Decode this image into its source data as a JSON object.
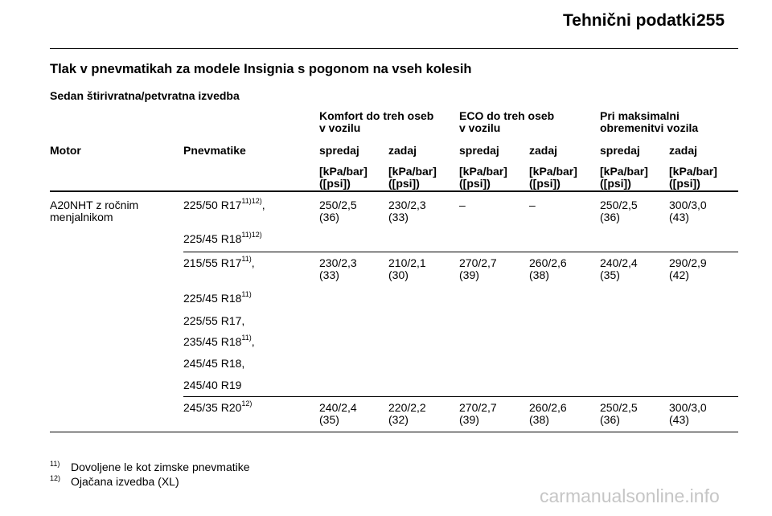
{
  "header": {
    "title": "Tehnični podatki",
    "page_number": "255"
  },
  "section_title": "Tlak v pnevmatikah za modele Insignia s pogonom na vseh kolesih",
  "subtitle": "Sedan štirivratna/petvratna izvedba",
  "groups": [
    {
      "line1": "Komfort do treh oseb",
      "line2": "v vozilu"
    },
    {
      "line1": "ECO do treh oseb",
      "line2": "v vozilu"
    },
    {
      "line1": "Pri maksimalni",
      "line2": "obremenitvi vozila"
    }
  ],
  "columns": {
    "motor": "Motor",
    "tyres": "Pnevmatike",
    "front": "spredaj",
    "rear": "zadaj"
  },
  "unit": {
    "line1": "[kPa/bar]",
    "line2": "([psi])"
  },
  "motor": {
    "line1": "A20NHT z ročnim",
    "line2": "menjalnikom"
  },
  "rows": [
    {
      "tyres": [
        {
          "text": "225/50 R17",
          "sup": "11)12)",
          "suffix": ","
        },
        {
          "text": "225/45 R18",
          "sup": "11)12)",
          "suffix": ""
        }
      ],
      "values": [
        [
          "250/2,5",
          "(36)"
        ],
        [
          "230/2,3",
          "(33)"
        ],
        [
          "–",
          ""
        ],
        [
          "–",
          ""
        ],
        [
          "250/2,5",
          "(36)"
        ],
        [
          "300/3,0",
          "(43)"
        ]
      ]
    },
    {
      "tyres": [
        {
          "text": "215/55 R17",
          "sup": "11)",
          "suffix": ","
        },
        {
          "text": "225/45 R18",
          "sup": "11)",
          "suffix": ""
        },
        {
          "text": "225/55 R17,",
          "sup": "",
          "suffix": ""
        },
        {
          "text": "235/45 R18",
          "sup": "11)",
          "suffix": ","
        },
        {
          "text": "245/45 R18,",
          "sup": "",
          "suffix": ""
        },
        {
          "text": "245/40 R19",
          "sup": "",
          "suffix": ""
        }
      ],
      "values": [
        [
          "230/2,3",
          "(33)"
        ],
        [
          "210/2,1",
          "(30)"
        ],
        [
          "270/2,7",
          "(39)"
        ],
        [
          "260/2,6",
          "(38)"
        ],
        [
          "240/2,4",
          "(35)"
        ],
        [
          "290/2,9",
          "(42)"
        ]
      ]
    },
    {
      "tyres": [
        {
          "text": "245/35 R20",
          "sup": "12)",
          "suffix": ""
        }
      ],
      "values": [
        [
          "240/2,4",
          "(35)"
        ],
        [
          "220/2,2",
          "(32)"
        ],
        [
          "270/2,7",
          "(39)"
        ],
        [
          "260/2,6",
          "(38)"
        ],
        [
          "250/2,5",
          "(36)"
        ],
        [
          "300/3,0",
          "(43)"
        ]
      ]
    }
  ],
  "footnotes": [
    {
      "num": "11)",
      "text": "Dovoljene le kot zimske pnevmatike"
    },
    {
      "num": "12)",
      "text": "Ojačana izvedba (XL)"
    }
  ],
  "watermark": "carmanualsonline.info"
}
